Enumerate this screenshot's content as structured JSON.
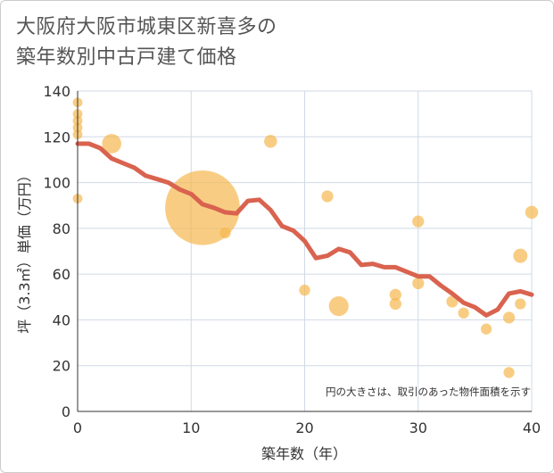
{
  "chart_data": {
    "type": "scatter",
    "title_line1": "大阪府大阪市城東区新喜多の",
    "title_line2": "築年数別中古戸建て価格",
    "xlabel": "築年数（年）",
    "ylabel": "坪（3.3㎡）単価（万円）",
    "note": "円の大きさは、取引のあった物件面積を示す",
    "xlim": [
      0,
      40
    ],
    "ylim": [
      0,
      140
    ],
    "xticks": [
      0,
      10,
      20,
      30,
      40
    ],
    "yticks": [
      0,
      20,
      40,
      60,
      80,
      100,
      120,
      140
    ],
    "colors": {
      "bubble": "#f5b84e",
      "line": "#d9634f",
      "grid": "#d0d9e6",
      "axis": "#333333"
    },
    "bubbles": [
      {
        "x": 0,
        "y": 135,
        "size": 1
      },
      {
        "x": 0,
        "y": 130,
        "size": 1
      },
      {
        "x": 0,
        "y": 127,
        "size": 1
      },
      {
        "x": 0,
        "y": 124,
        "size": 1
      },
      {
        "x": 0,
        "y": 121,
        "size": 1
      },
      {
        "x": 0,
        "y": 93,
        "size": 1
      },
      {
        "x": 3,
        "y": 117,
        "size": 4
      },
      {
        "x": 11,
        "y": 89,
        "size": 60
      },
      {
        "x": 13,
        "y": 78,
        "size": 1.3
      },
      {
        "x": 17,
        "y": 118,
        "size": 1.8
      },
      {
        "x": 20,
        "y": 53,
        "size": 1.3
      },
      {
        "x": 22,
        "y": 94,
        "size": 1.5
      },
      {
        "x": 23,
        "y": 46,
        "size": 4.2
      },
      {
        "x": 28,
        "y": 51,
        "size": 1.5
      },
      {
        "x": 28,
        "y": 47,
        "size": 1.5
      },
      {
        "x": 30,
        "y": 83,
        "size": 1.5
      },
      {
        "x": 30,
        "y": 56,
        "size": 1.5
      },
      {
        "x": 33,
        "y": 48,
        "size": 1.5
      },
      {
        "x": 34,
        "y": 43,
        "size": 1.3
      },
      {
        "x": 36,
        "y": 36,
        "size": 1.3
      },
      {
        "x": 38,
        "y": 41,
        "size": 1.5
      },
      {
        "x": 38,
        "y": 17,
        "size": 1.3
      },
      {
        "x": 39,
        "y": 68,
        "size": 2.2
      },
      {
        "x": 39,
        "y": 47,
        "size": 1.3
      },
      {
        "x": 40,
        "y": 87,
        "size": 1.8
      }
    ],
    "trend": {
      "x": [
        0,
        1,
        2,
        3,
        4,
        5,
        6,
        7,
        8,
        9,
        10,
        11,
        12,
        13,
        14,
        15,
        16,
        17,
        18,
        19,
        20,
        21,
        22,
        23,
        24,
        25,
        26,
        27,
        28,
        29,
        30,
        31,
        32,
        33,
        34,
        35,
        36,
        37,
        38,
        39,
        40
      ],
      "y": [
        117,
        117,
        115,
        110.5,
        108.5,
        106.5,
        103,
        101.5,
        100,
        97,
        95,
        90.5,
        89,
        87,
        86.5,
        92,
        92.5,
        88,
        81,
        79,
        74.5,
        67,
        68,
        71,
        69.5,
        64,
        64.5,
        63,
        63,
        61,
        59,
        59,
        55,
        51.5,
        47.5,
        45.5,
        42,
        44.5,
        51.5,
        52.5,
        51
      ]
    }
  }
}
